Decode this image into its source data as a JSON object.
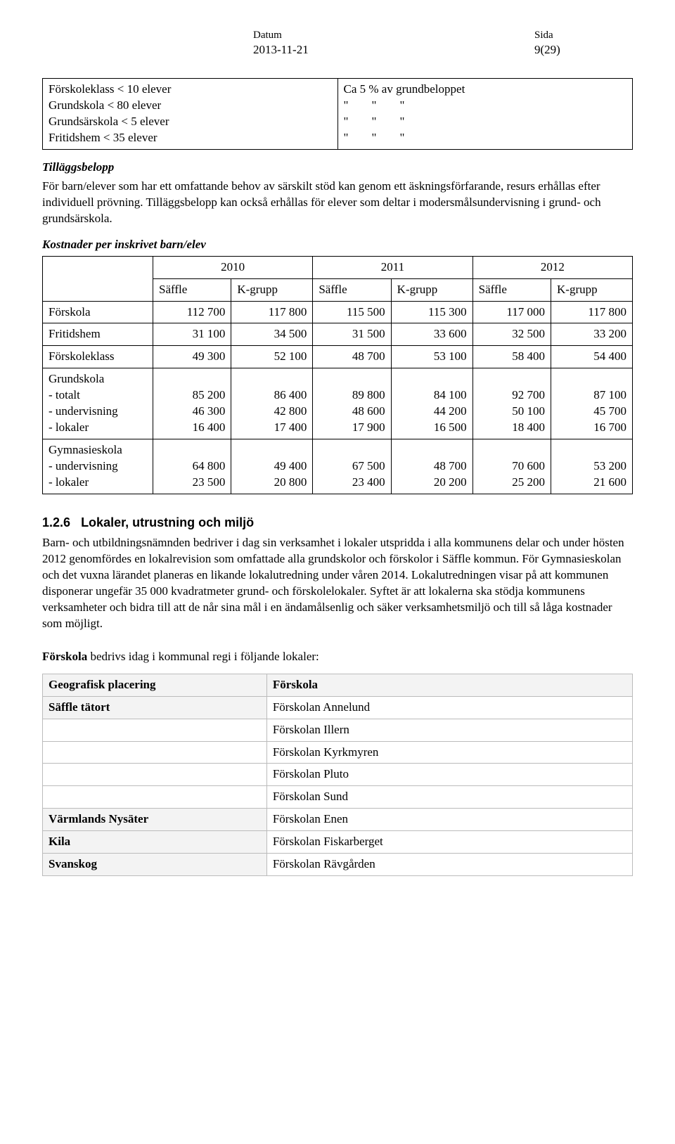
{
  "header": {
    "datum_label": "Datum",
    "datum_value": "2013-11-21",
    "sida_label": "Sida",
    "sida_value": "9(29)"
  },
  "tillagsTable": {
    "rows": [
      {
        "label": "Förskoleklass < 10 elever",
        "value": "Ca 5 % av grundbeloppet"
      },
      {
        "label": "Grundskola < 80 elever",
        "value_ditto": true
      },
      {
        "label": "Grundsärskola < 5 elever",
        "value_ditto": true
      },
      {
        "label": "Fritidshem < 35 elever",
        "value_ditto": true
      }
    ]
  },
  "tillaggsbelopp": {
    "heading": "Tilläggsbelopp",
    "body": "För barn/elever som har ett omfattande behov av särskilt stöd kan genom ett äskningsförfarande, resurs erhållas efter individuell prövning. Tilläggsbelopp kan också erhållas för elever som deltar i modersmålsundervisning i grund- och grundsärskola."
  },
  "kost": {
    "heading": "Kostnader per inskrivet barn/elev",
    "years": [
      "2010",
      "2011",
      "2012"
    ],
    "subcols": [
      "Säffle",
      "K-grupp"
    ],
    "rows": [
      {
        "label": "Förskola",
        "vals": [
          "112 700",
          "117 800",
          "115 500",
          "115 300",
          "117 000",
          "117 800"
        ]
      },
      {
        "label": "Fritidshem",
        "vals": [
          "31 100",
          "34 500",
          "31 500",
          "33 600",
          "32 500",
          "33 200"
        ]
      },
      {
        "label": "Förskoleklass",
        "vals": [
          "49 300",
          "52 100",
          "48 700",
          "53 100",
          "58 400",
          "54 400"
        ]
      }
    ],
    "grundskola": {
      "label": "Grundskola",
      "sub": [
        {
          "label": "- totalt",
          "vals": [
            "85 200",
            "86 400",
            "89 800",
            "84 100",
            "92 700",
            "87 100"
          ]
        },
        {
          "label": "- undervisning",
          "vals": [
            "46 300",
            "42 800",
            "48 600",
            "44 200",
            "50 100",
            "45 700"
          ]
        },
        {
          "label": "- lokaler",
          "vals": [
            "16 400",
            "17 400",
            "17 900",
            "16 500",
            "18 400",
            "16 700"
          ]
        }
      ]
    },
    "gymnasie": {
      "label": "Gymnasieskola",
      "sub": [
        {
          "label": "- undervisning",
          "vals": [
            "64 800",
            "49 400",
            "67 500",
            "48 700",
            "70 600",
            "53 200"
          ]
        },
        {
          "label": "- lokaler",
          "vals": [
            "23 500",
            "20 800",
            "23 400",
            "20 200",
            "25 200",
            "21 600"
          ]
        }
      ]
    }
  },
  "lokaler": {
    "heading_num": "1.2.6",
    "heading_text": "Lokaler, utrustning och miljö",
    "body": "Barn- och utbildningsnämnden bedriver i dag sin verksamhet i lokaler utspridda i alla kommunens delar och under hösten 2012 genomfördes en lokalrevision som omfattade alla grundskolor och förskolor i Säffle kommun. För Gymnasieskolan och det vuxna lärandet planeras en likande lokalutredning under våren 2014. Lokalutredningen visar på att kommunen disponerar ungefär 35 000 kvadratmeter grund- och förskolelokaler. Syftet är att lokalerna ska stödja kommunens verksamheter och bidra till att de når sina mål i en ändamålsenlig och säker verksamhetsmiljö och till så låga kostnader som möjligt."
  },
  "forskola_intro_bold": "Förskola",
  "forskola_intro_rest": " bedrivs idag i kommunal regi i följande lokaler:",
  "geoTable": {
    "col1": "Geografisk placering",
    "col2": "Förskola",
    "rows": [
      {
        "loc": "Säffle tätort",
        "shaded": true,
        "name": "Förskolan Annelund"
      },
      {
        "loc": "",
        "name": "Förskolan Illern"
      },
      {
        "loc": "",
        "name": "Förskolan Kyrkmyren"
      },
      {
        "loc": "",
        "name": "Förskolan Pluto"
      },
      {
        "loc": "",
        "name": "Förskolan Sund"
      },
      {
        "loc": "Värmlands Nysäter",
        "shaded": true,
        "name": "Förskolan Enen"
      },
      {
        "loc": "Kila",
        "shaded": true,
        "name": "Förskolan Fiskarberget"
      },
      {
        "loc": "Svanskog",
        "shaded": true,
        "name": "Förskolan Rävgården"
      }
    ]
  }
}
